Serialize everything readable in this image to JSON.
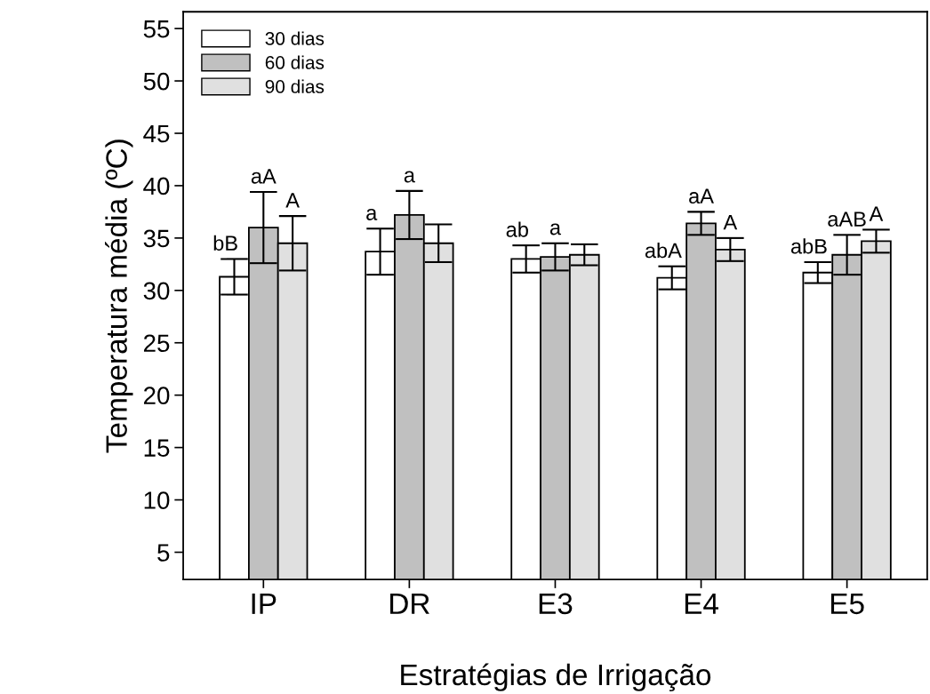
{
  "chart_data": {
    "type": "bar",
    "xlabel": "Estratégias de Irrigação",
    "ylabel": "Temperatura média (ºC)",
    "categories": [
      "IP",
      "DR",
      "E3",
      "E4",
      "E5"
    ],
    "series": [
      {
        "name": "30 dias",
        "color": "#ffffff",
        "values": [
          31.3,
          33.7,
          33.0,
          31.2,
          31.7
        ],
        "errors": [
          1.7,
          2.2,
          1.3,
          1.1,
          1.0
        ],
        "value_labels": [
          "bB",
          "a",
          "ab",
          "abA",
          "abB"
        ]
      },
      {
        "name": "60 dias",
        "color": "#c0c0c0",
        "values": [
          36.0,
          37.2,
          33.2,
          36.4,
          33.4
        ],
        "errors": [
          3.4,
          2.3,
          1.3,
          1.1,
          1.9
        ],
        "value_labels": [
          "aA",
          "a",
          "a",
          "aA",
          "aAB"
        ]
      },
      {
        "name": "90 dias",
        "color": "#e0e0e0",
        "values": [
          34.5,
          34.5,
          33.4,
          33.9,
          34.7
        ],
        "errors": [
          2.6,
          1.8,
          1.0,
          1.1,
          1.1
        ],
        "value_labels": [
          "A",
          null,
          null,
          "A",
          "A"
        ]
      }
    ],
    "ylim": [
      2.4,
      56.6
    ],
    "yticks": [
      5,
      10,
      15,
      20,
      25,
      30,
      35,
      40,
      45,
      50,
      55
    ],
    "grid": false,
    "legend": "top left"
  }
}
